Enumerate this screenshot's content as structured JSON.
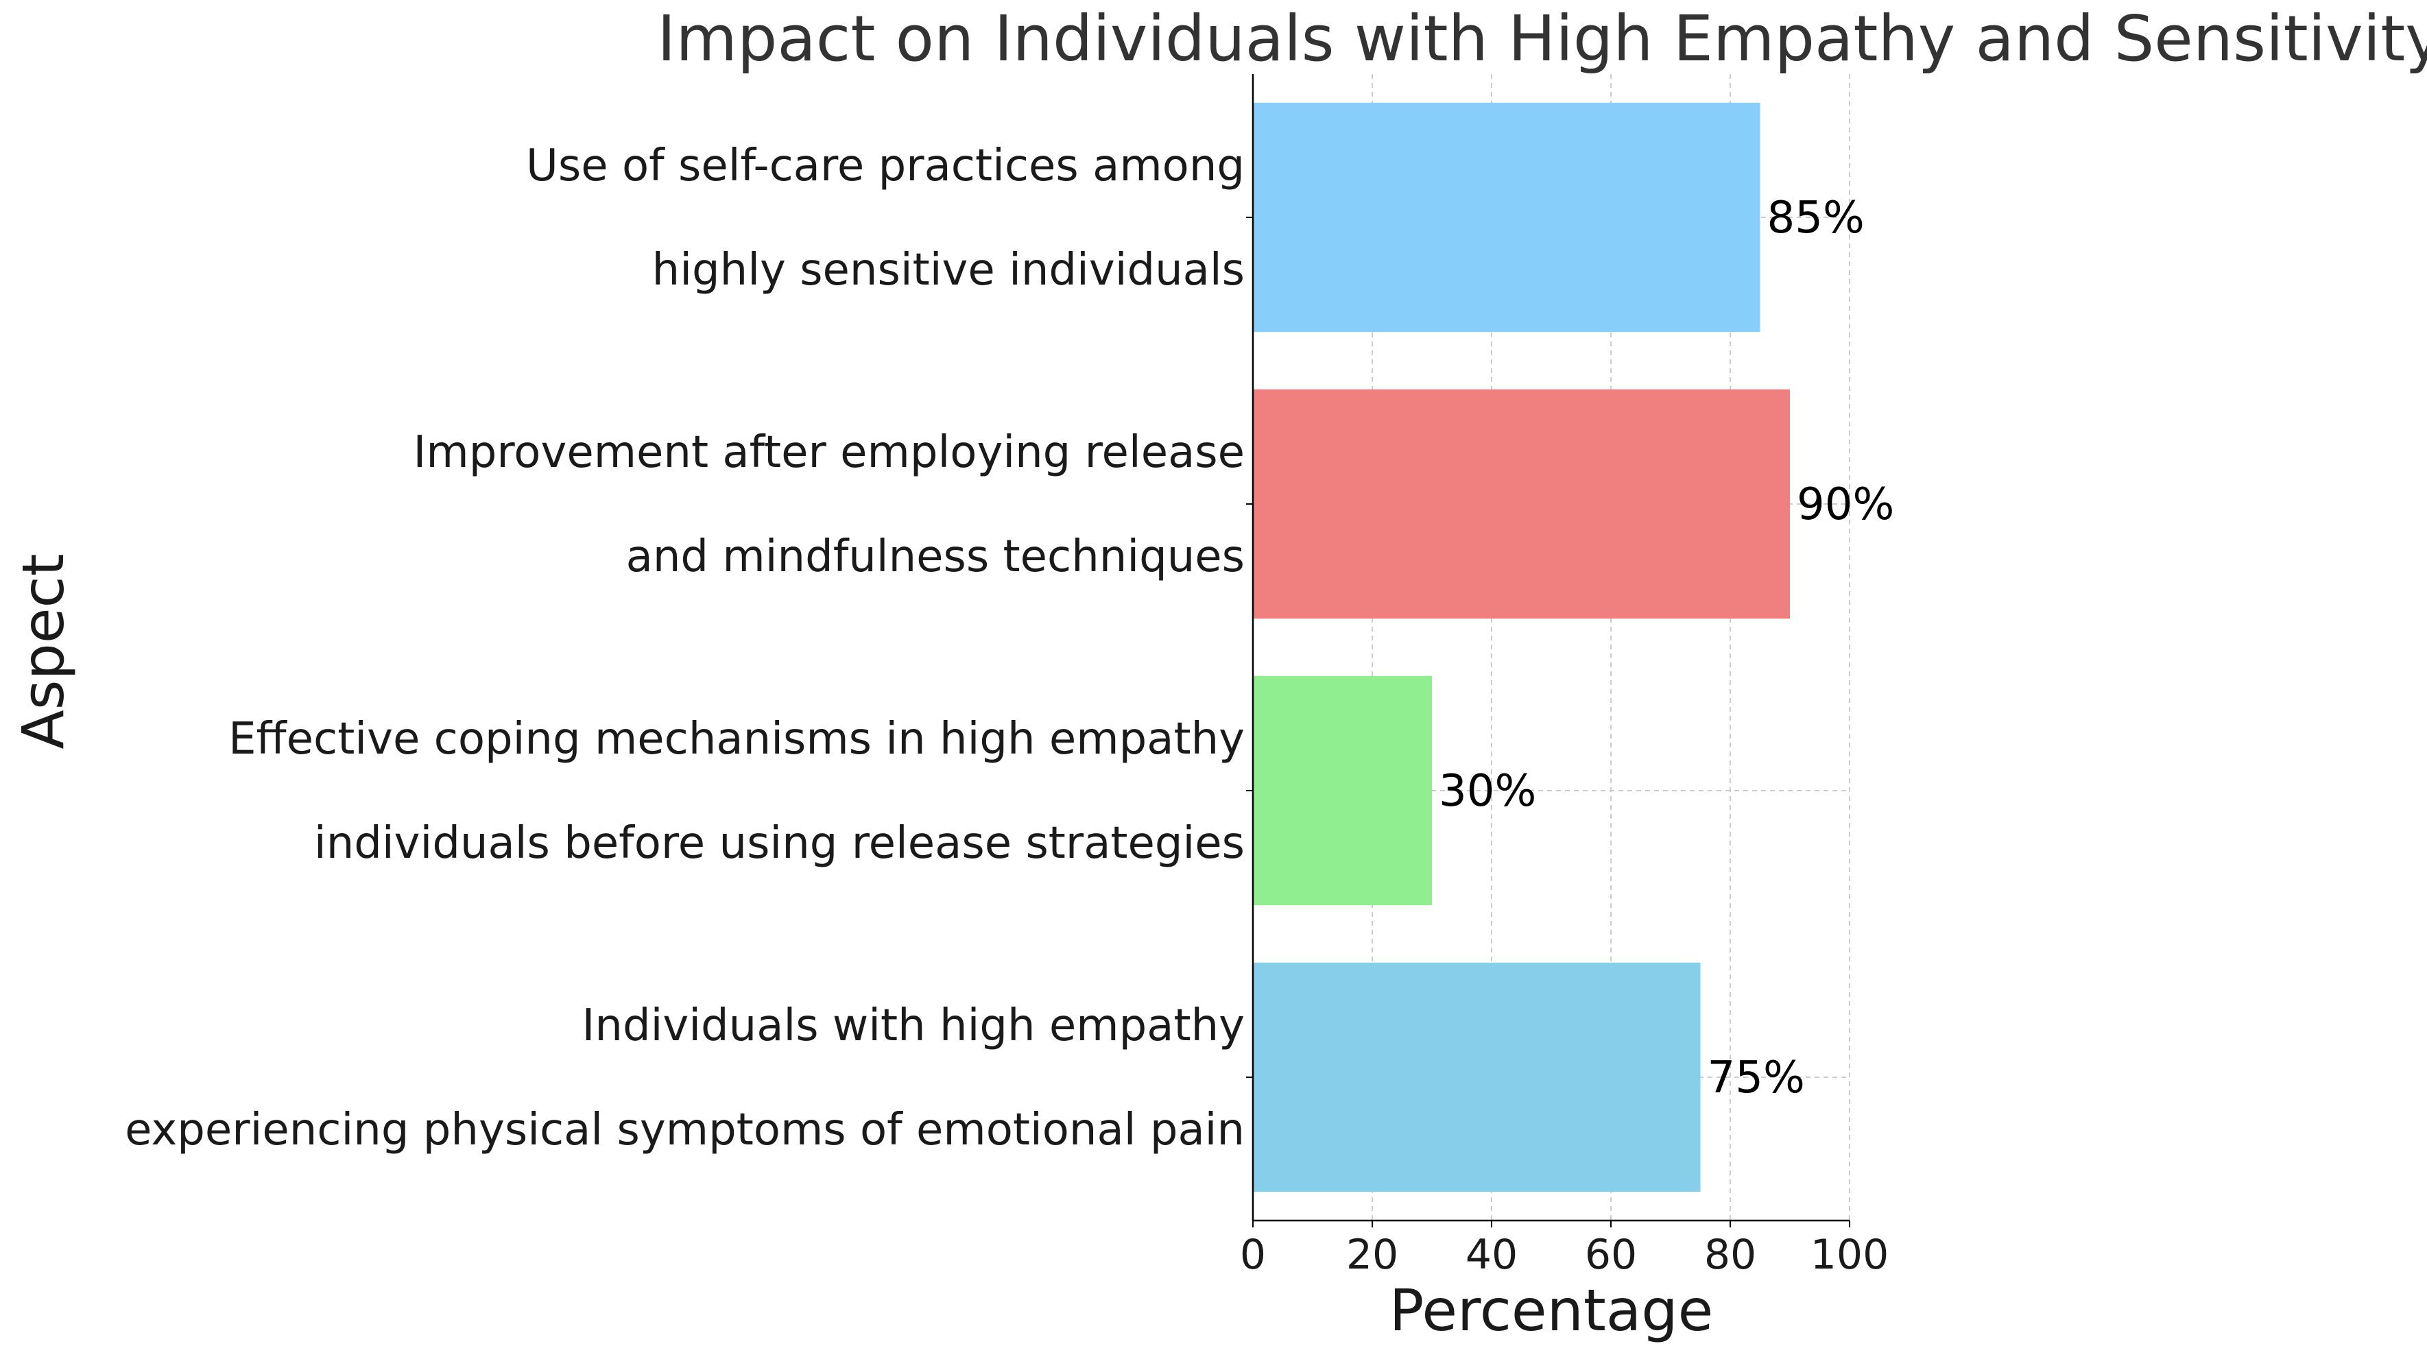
{
  "chart_data": {
    "type": "bar",
    "orientation": "horizontal",
    "title": "Impact on Individuals with High Empathy and Sensitivity",
    "xlabel": "Percentage",
    "ylabel": "Aspect",
    "xlim": [
      0,
      100
    ],
    "xticks": [
      0,
      20,
      40,
      60,
      80,
      100
    ],
    "grid": true,
    "categories": [
      [
        "Individuals with high empathy",
        "experiencing physical symptoms of emotional pain"
      ],
      [
        "Effective coping mechanisms in high empathy",
        "individuals before using release strategies"
      ],
      [
        "Improvement after employing release",
        "and mindfulness techniques"
      ],
      [
        "Use of self-care practices among",
        "highly sensitive individuals"
      ]
    ],
    "values": [
      75,
      30,
      90,
      85
    ],
    "value_labels": [
      "75%",
      "30%",
      "90%",
      "85%"
    ],
    "colors": [
      "#87ceeb",
      "#90ee90",
      "#f08080",
      "#87cefa"
    ]
  }
}
